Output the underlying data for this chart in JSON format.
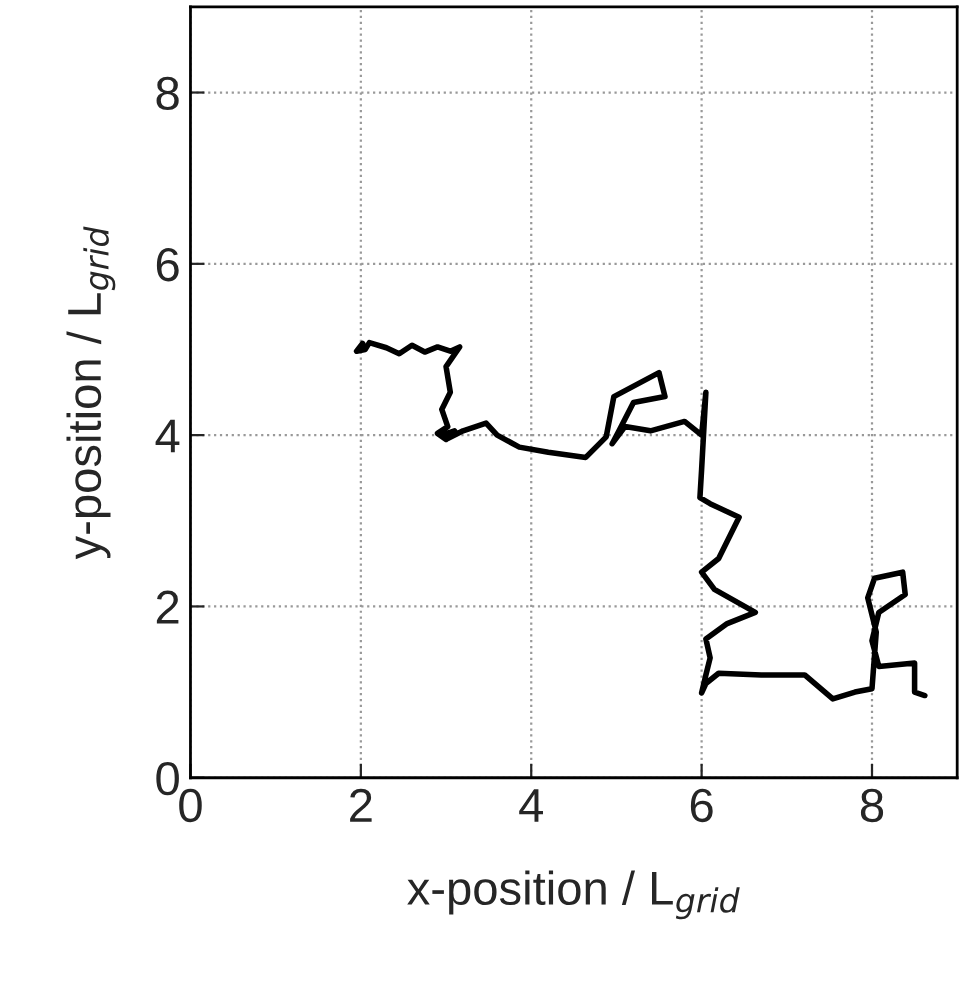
{
  "chart_data": {
    "type": "line",
    "xlabel": "x-position / L$_{grid}$",
    "ylabel": "y-position / L$_{grid}$",
    "xlim": [
      0,
      9
    ],
    "ylim": [
      0,
      9
    ],
    "xticks": [
      0,
      2,
      4,
      6,
      8
    ],
    "yticks": [
      0,
      2,
      4,
      6,
      8
    ],
    "grid": true,
    "marker": "none",
    "line_style": "solid",
    "series": [
      {
        "color": "#000000",
        "x": [
          2.02,
          1.95,
          2.05,
          2.1,
          2.3,
          2.45,
          2.6,
          2.75,
          2.9,
          3.05,
          3.16,
          3.0,
          3.05,
          2.95,
          3.02,
          2.9,
          3.0,
          3.1,
          2.95,
          3.02,
          3.2,
          3.47,
          3.6,
          3.86,
          4.2,
          4.64,
          4.88,
          4.97,
          5.5,
          5.57,
          5.2,
          5.03,
          4.95,
          5.1,
          5.4,
          5.8,
          6.0,
          6.05,
          6.0,
          5.98,
          6.1,
          6.44,
          6.2,
          6.0,
          6.15,
          6.63,
          6.3,
          6.05,
          6.1,
          6.05,
          6.0,
          6.05,
          6.2,
          6.7,
          7.21,
          7.54,
          7.8,
          8.0,
          8.05,
          7.95,
          8.03,
          8.36,
          8.39,
          8.08,
          8.0,
          8.08,
          8.5,
          8.5,
          8.62
        ],
        "values": [
          5.07,
          4.98,
          5.0,
          5.08,
          5.02,
          4.95,
          5.05,
          4.97,
          5.03,
          4.98,
          5.03,
          4.8,
          4.5,
          4.3,
          4.1,
          4.02,
          3.95,
          4.05,
          4.0,
          3.96,
          4.05,
          4.14,
          4.0,
          3.86,
          3.8,
          3.74,
          3.98,
          4.45,
          4.73,
          4.45,
          4.38,
          4.05,
          3.9,
          4.1,
          4.05,
          4.16,
          4.0,
          4.5,
          3.6,
          3.27,
          3.2,
          3.04,
          2.56,
          2.4,
          2.2,
          1.93,
          1.8,
          1.62,
          1.4,
          1.2,
          0.99,
          1.1,
          1.22,
          1.2,
          1.2,
          0.92,
          1.0,
          1.04,
          1.7,
          2.1,
          2.33,
          2.4,
          2.14,
          1.93,
          1.6,
          1.3,
          1.34,
          1.0,
          0.96
        ]
      }
    ]
  }
}
